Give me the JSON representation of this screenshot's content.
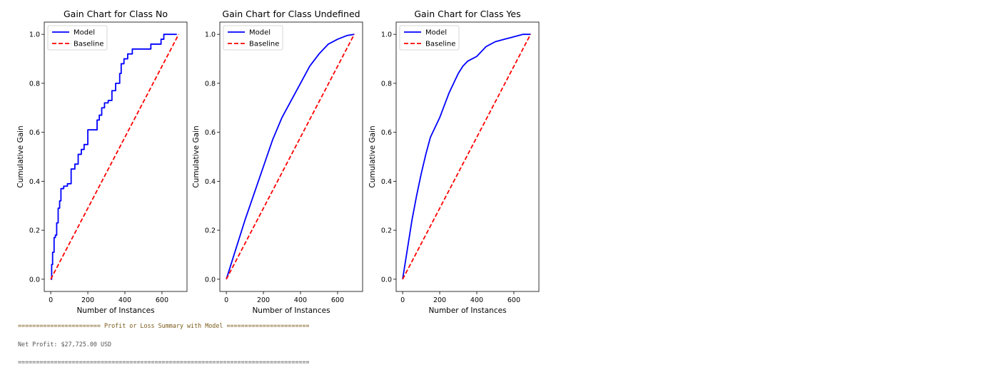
{
  "chart_data": [
    {
      "type": "line",
      "title": "Gain Chart for Class No",
      "xlabel": "Number of Instances",
      "ylabel": "Cumulative Gain",
      "xlim": [
        -35,
        735
      ],
      "ylim": [
        -0.05,
        1.05
      ],
      "xticks": [
        0,
        200,
        400,
        600
      ],
      "yticks": [
        0.0,
        0.2,
        0.4,
        0.6,
        0.8,
        1.0
      ],
      "legend": "upper-left",
      "series": [
        {
          "name": "Model",
          "color": "#0000ff",
          "step": true,
          "x": [
            0,
            5,
            10,
            18,
            25,
            32,
            40,
            48,
            55,
            62,
            70,
            90,
            110,
            130,
            148,
            165,
            180,
            200,
            230,
            250,
            262,
            275,
            290,
            310,
            330,
            350,
            372,
            380,
            395,
            415,
            440,
            480,
            540,
            570,
            595,
            610,
            640,
            680
          ],
          "y": [
            0.0,
            0.06,
            0.11,
            0.17,
            0.18,
            0.23,
            0.29,
            0.32,
            0.37,
            0.37,
            0.38,
            0.39,
            0.45,
            0.47,
            0.51,
            0.53,
            0.55,
            0.61,
            0.61,
            0.65,
            0.67,
            0.7,
            0.72,
            0.73,
            0.77,
            0.8,
            0.84,
            0.88,
            0.9,
            0.92,
            0.94,
            0.94,
            0.96,
            0.96,
            0.98,
            1.0,
            1.0,
            1.0
          ]
        },
        {
          "name": "Baseline",
          "color": "#ff0000",
          "dashed": true,
          "x": [
            0,
            690
          ],
          "y": [
            0.0,
            1.0
          ]
        }
      ]
    },
    {
      "type": "line",
      "title": "Gain Chart for Class Undefined",
      "xlabel": "Number of Instances",
      "ylabel": "Cumulative Gain",
      "xlim": [
        -35,
        735
      ],
      "ylim": [
        -0.05,
        1.05
      ],
      "xticks": [
        0,
        200,
        400,
        600
      ],
      "yticks": [
        0.0,
        0.2,
        0.4,
        0.6,
        0.8,
        1.0
      ],
      "legend": "upper-left",
      "series": [
        {
          "name": "Model",
          "color": "#0000ff",
          "step": false,
          "x": [
            0,
            50,
            100,
            150,
            200,
            250,
            300,
            350,
            400,
            450,
            500,
            550,
            600,
            650,
            690
          ],
          "y": [
            0.0,
            0.12,
            0.24,
            0.35,
            0.46,
            0.57,
            0.66,
            0.73,
            0.8,
            0.87,
            0.92,
            0.96,
            0.98,
            0.995,
            1.0
          ]
        },
        {
          "name": "Baseline",
          "color": "#ff0000",
          "dashed": true,
          "x": [
            0,
            690
          ],
          "y": [
            0.0,
            1.0
          ]
        }
      ]
    },
    {
      "type": "line",
      "title": "Gain Chart for Class Yes",
      "xlabel": "Number of Instances",
      "ylabel": "Cumulative Gain",
      "xlim": [
        -35,
        735
      ],
      "ylim": [
        -0.05,
        1.05
      ],
      "xticks": [
        0,
        200,
        400,
        600
      ],
      "yticks": [
        0.0,
        0.2,
        0.4,
        0.6,
        0.8,
        1.0
      ],
      "legend": "upper-left",
      "series": [
        {
          "name": "Model",
          "color": "#0000ff",
          "step": false,
          "x": [
            0,
            25,
            50,
            75,
            100,
            125,
            150,
            175,
            200,
            225,
            250,
            275,
            300,
            325,
            350,
            375,
            400,
            425,
            450,
            475,
            500,
            550,
            600,
            650,
            690
          ],
          "y": [
            0.0,
            0.12,
            0.24,
            0.34,
            0.43,
            0.51,
            0.58,
            0.62,
            0.66,
            0.71,
            0.76,
            0.8,
            0.84,
            0.87,
            0.89,
            0.9,
            0.91,
            0.93,
            0.95,
            0.96,
            0.97,
            0.98,
            0.99,
            1.0,
            1.0
          ]
        },
        {
          "name": "Baseline",
          "color": "#ff0000",
          "dashed": true,
          "x": [
            0,
            690
          ],
          "y": [
            0.0,
            1.0
          ]
        }
      ]
    }
  ],
  "console": {
    "header": "======================= Profit or Loss Summary with Model =======================",
    "profit": "Net Profit: $27,725.00 USD",
    "footer": "================================================================================="
  }
}
